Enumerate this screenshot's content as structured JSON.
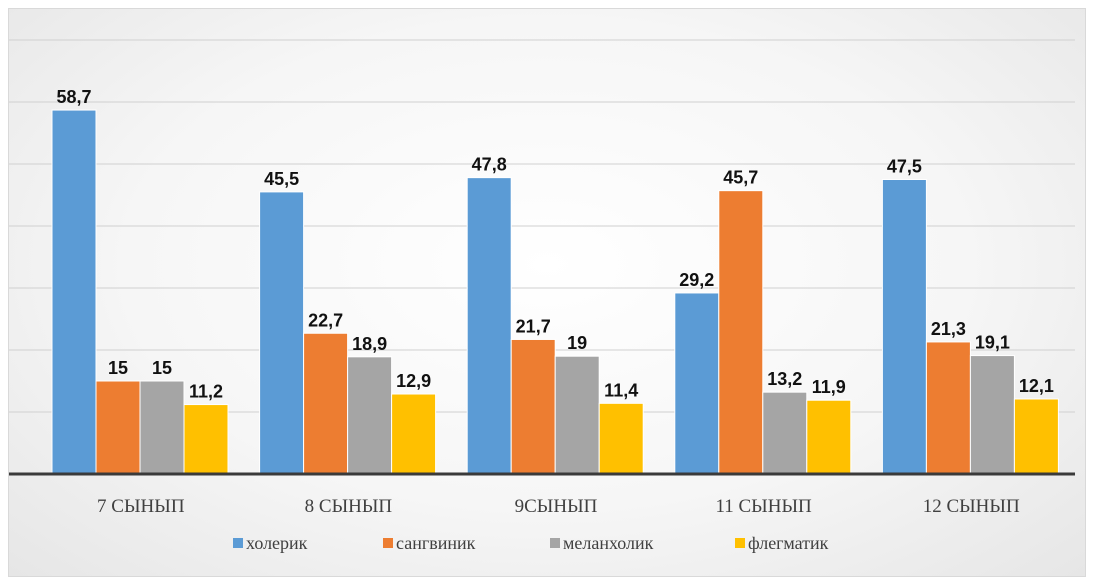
{
  "chart_data": {
    "type": "bar",
    "title": "",
    "xlabel": "",
    "ylabel": "",
    "ylim": [
      0,
      70
    ],
    "grid": true,
    "legend_position": "bottom",
    "categories": [
      "7 СЫНЫП",
      "8 СЫНЫП",
      "9СЫНЫП",
      "11 СЫНЫП",
      "12 СЫНЫП"
    ],
    "series": [
      {
        "name": "холерик",
        "color": "#5b9bd5",
        "values": [
          58.7,
          45.5,
          47.8,
          29.2,
          47.5
        ],
        "labels": [
          "58,7",
          "45,5",
          "47,8",
          "29,2",
          "47,5"
        ]
      },
      {
        "name": "сангвиник",
        "color": "#ed7d31",
        "values": [
          15,
          22.7,
          21.7,
          45.7,
          21.3
        ],
        "labels": [
          "15",
          "22,7",
          "21,7",
          "45,7",
          "21,3"
        ]
      },
      {
        "name": "меланхолик",
        "color": "#a5a5a5",
        "values": [
          15,
          18.9,
          19,
          13.2,
          19.1
        ],
        "labels": [
          "15",
          "18,9",
          "19",
          "13,2",
          "19,1"
        ]
      },
      {
        "name": "флегматик",
        "color": "#ffc000",
        "values": [
          11.2,
          12.9,
          11.4,
          11.9,
          12.1
        ],
        "labels": [
          "11,2",
          "12,9",
          "11,4",
          "11,9",
          "12,1"
        ]
      }
    ]
  }
}
